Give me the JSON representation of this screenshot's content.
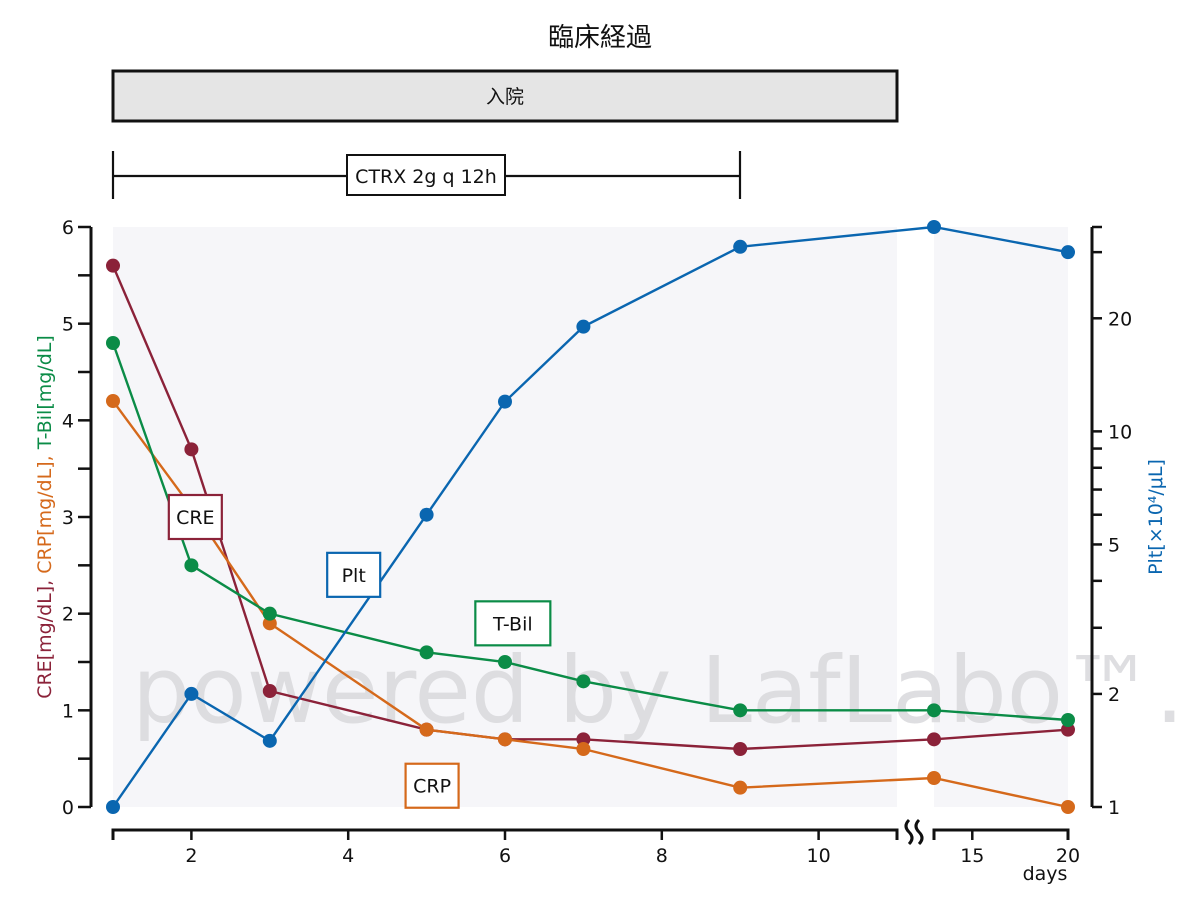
{
  "title": "臨床経過",
  "admission_bar": {
    "label": "入院",
    "start_day": 1,
    "end_day": 11,
    "fill": "#e5e5e5"
  },
  "treatment_bar": {
    "label": "CTRX 2g q 12h",
    "start_day": 1,
    "end_day": 9
  },
  "watermark": "powered by LafLabo™.",
  "colors": {
    "CRE": "#8b2239",
    "CRP": "#d5691b",
    "T-Bil": "#0b8c47",
    "Plt": "#0a66b0",
    "plot_bg": "#f6f6f9"
  },
  "chart_data": {
    "type": "line",
    "title": "臨床経過",
    "x": [
      1,
      2,
      3,
      5,
      6,
      7,
      9,
      13,
      20
    ],
    "xlabel": "days",
    "x_axis_break": {
      "segments": [
        [
          1,
          11
        ],
        [
          13,
          20
        ]
      ]
    },
    "x_ticks": [
      2,
      4,
      6,
      8,
      10,
      15,
      20
    ],
    "left_axis": {
      "label_parts": [
        "CRE[mg/dL]",
        ", ",
        "CRP[mg/dL]",
        ", ",
        "T-Bil[mg/dL]"
      ],
      "ylim": [
        0,
        6
      ],
      "ticks": [
        0,
        1,
        2,
        3,
        4,
        5,
        6
      ],
      "scale": "linear"
    },
    "right_axis": {
      "label": "Plt[×10⁴/μL]",
      "ylim": [
        1,
        35
      ],
      "ticks": [
        1,
        2,
        5,
        10,
        20
      ],
      "scale": "log"
    },
    "series": [
      {
        "name": "CRE",
        "axis": "left",
        "values": [
          5.6,
          3.7,
          1.2,
          0.8,
          0.7,
          0.7,
          0.6,
          0.7,
          0.8
        ],
        "label_pos": [
          2.05,
          3.0
        ]
      },
      {
        "name": "CRP",
        "axis": "left",
        "values": [
          4.2,
          3.1,
          1.9,
          0.8,
          0.7,
          0.6,
          0.2,
          0.3,
          0.0
        ],
        "label_pos": [
          5.07,
          0.22
        ]
      },
      {
        "name": "T-Bil",
        "axis": "left",
        "values": [
          4.8,
          2.5,
          2.0,
          1.6,
          1.5,
          1.3,
          1.0,
          1.0,
          0.9
        ],
        "label_pos": [
          6.1,
          1.9
        ]
      },
      {
        "name": "Plt",
        "axis": "right",
        "values": [
          1.0,
          2.0,
          1.5,
          6.0,
          12.0,
          19.0,
          31.0,
          35.0,
          30.0
        ],
        "label_pos": [
          4.07,
          4.15
        ]
      }
    ],
    "grid": false,
    "legend": "inline labels"
  }
}
